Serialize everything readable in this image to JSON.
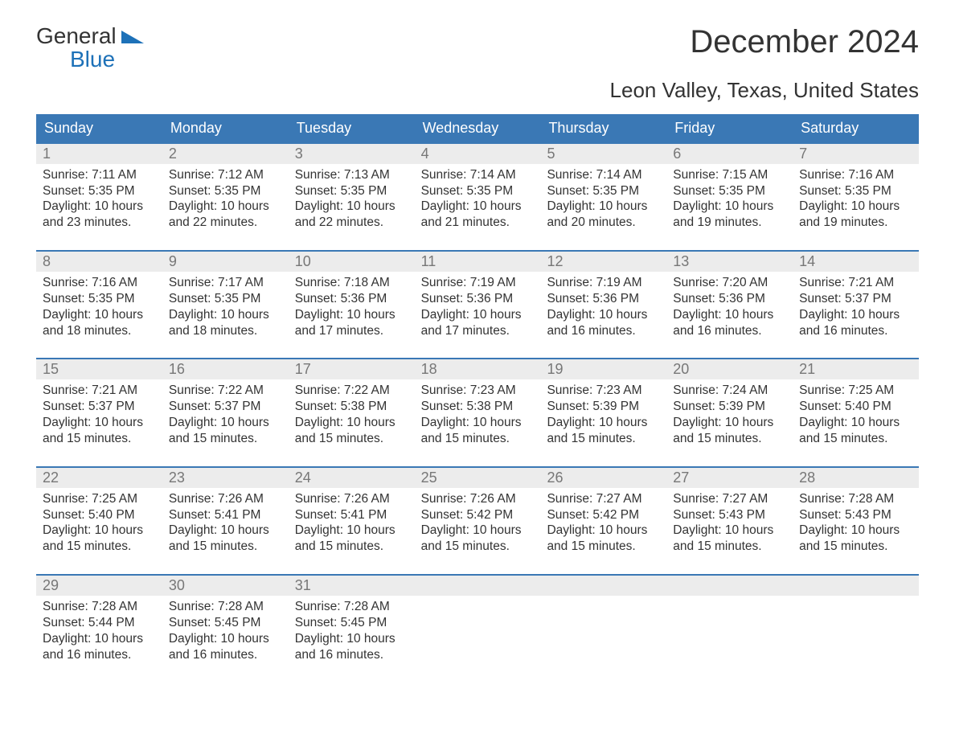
{
  "brand": {
    "top": "General",
    "bottom": "Blue"
  },
  "title": "December 2024",
  "location": "Leon Valley, Texas, United States",
  "colors": {
    "header_bg": "#3a78b5",
    "header_text": "#ffffff",
    "daynum_bg": "#ececec",
    "daynum_text": "#777777",
    "body_text": "#333333",
    "brand_blue": "#1d71b8",
    "page_bg": "#ffffff",
    "week_border": "#3a78b5"
  },
  "typography": {
    "title_fontsize": 40,
    "location_fontsize": 26,
    "dayheader_fontsize": 18,
    "daynum_fontsize": 18,
    "body_fontsize": 15.5,
    "logo_fontsize": 28
  },
  "day_headers": [
    "Sunday",
    "Monday",
    "Tuesday",
    "Wednesday",
    "Thursday",
    "Friday",
    "Saturday"
  ],
  "weeks": [
    [
      {
        "n": "1",
        "sunrise": "7:11 AM",
        "sunset": "5:35 PM",
        "daylight": "10 hours and 23 minutes."
      },
      {
        "n": "2",
        "sunrise": "7:12 AM",
        "sunset": "5:35 PM",
        "daylight": "10 hours and 22 minutes."
      },
      {
        "n": "3",
        "sunrise": "7:13 AM",
        "sunset": "5:35 PM",
        "daylight": "10 hours and 22 minutes."
      },
      {
        "n": "4",
        "sunrise": "7:14 AM",
        "sunset": "5:35 PM",
        "daylight": "10 hours and 21 minutes."
      },
      {
        "n": "5",
        "sunrise": "7:14 AM",
        "sunset": "5:35 PM",
        "daylight": "10 hours and 20 minutes."
      },
      {
        "n": "6",
        "sunrise": "7:15 AM",
        "sunset": "5:35 PM",
        "daylight": "10 hours and 19 minutes."
      },
      {
        "n": "7",
        "sunrise": "7:16 AM",
        "sunset": "5:35 PM",
        "daylight": "10 hours and 19 minutes."
      }
    ],
    [
      {
        "n": "8",
        "sunrise": "7:16 AM",
        "sunset": "5:35 PM",
        "daylight": "10 hours and 18 minutes."
      },
      {
        "n": "9",
        "sunrise": "7:17 AM",
        "sunset": "5:35 PM",
        "daylight": "10 hours and 18 minutes."
      },
      {
        "n": "10",
        "sunrise": "7:18 AM",
        "sunset": "5:36 PM",
        "daylight": "10 hours and 17 minutes."
      },
      {
        "n": "11",
        "sunrise": "7:19 AM",
        "sunset": "5:36 PM",
        "daylight": "10 hours and 17 minutes."
      },
      {
        "n": "12",
        "sunrise": "7:19 AM",
        "sunset": "5:36 PM",
        "daylight": "10 hours and 16 minutes."
      },
      {
        "n": "13",
        "sunrise": "7:20 AM",
        "sunset": "5:36 PM",
        "daylight": "10 hours and 16 minutes."
      },
      {
        "n": "14",
        "sunrise": "7:21 AM",
        "sunset": "5:37 PM",
        "daylight": "10 hours and 16 minutes."
      }
    ],
    [
      {
        "n": "15",
        "sunrise": "7:21 AM",
        "sunset": "5:37 PM",
        "daylight": "10 hours and 15 minutes."
      },
      {
        "n": "16",
        "sunrise": "7:22 AM",
        "sunset": "5:37 PM",
        "daylight": "10 hours and 15 minutes."
      },
      {
        "n": "17",
        "sunrise": "7:22 AM",
        "sunset": "5:38 PM",
        "daylight": "10 hours and 15 minutes."
      },
      {
        "n": "18",
        "sunrise": "7:23 AM",
        "sunset": "5:38 PM",
        "daylight": "10 hours and 15 minutes."
      },
      {
        "n": "19",
        "sunrise": "7:23 AM",
        "sunset": "5:39 PM",
        "daylight": "10 hours and 15 minutes."
      },
      {
        "n": "20",
        "sunrise": "7:24 AM",
        "sunset": "5:39 PM",
        "daylight": "10 hours and 15 minutes."
      },
      {
        "n": "21",
        "sunrise": "7:25 AM",
        "sunset": "5:40 PM",
        "daylight": "10 hours and 15 minutes."
      }
    ],
    [
      {
        "n": "22",
        "sunrise": "7:25 AM",
        "sunset": "5:40 PM",
        "daylight": "10 hours and 15 minutes."
      },
      {
        "n": "23",
        "sunrise": "7:26 AM",
        "sunset": "5:41 PM",
        "daylight": "10 hours and 15 minutes."
      },
      {
        "n": "24",
        "sunrise": "7:26 AM",
        "sunset": "5:41 PM",
        "daylight": "10 hours and 15 minutes."
      },
      {
        "n": "25",
        "sunrise": "7:26 AM",
        "sunset": "5:42 PM",
        "daylight": "10 hours and 15 minutes."
      },
      {
        "n": "26",
        "sunrise": "7:27 AM",
        "sunset": "5:42 PM",
        "daylight": "10 hours and 15 minutes."
      },
      {
        "n": "27",
        "sunrise": "7:27 AM",
        "sunset": "5:43 PM",
        "daylight": "10 hours and 15 minutes."
      },
      {
        "n": "28",
        "sunrise": "7:28 AM",
        "sunset": "5:43 PM",
        "daylight": "10 hours and 15 minutes."
      }
    ],
    [
      {
        "n": "29",
        "sunrise": "7:28 AM",
        "sunset": "5:44 PM",
        "daylight": "10 hours and 16 minutes."
      },
      {
        "n": "30",
        "sunrise": "7:28 AM",
        "sunset": "5:45 PM",
        "daylight": "10 hours and 16 minutes."
      },
      {
        "n": "31",
        "sunrise": "7:28 AM",
        "sunset": "5:45 PM",
        "daylight": "10 hours and 16 minutes."
      },
      {
        "empty": true
      },
      {
        "empty": true
      },
      {
        "empty": true
      },
      {
        "empty": true
      }
    ]
  ],
  "labels": {
    "sunrise": "Sunrise: ",
    "sunset": "Sunset: ",
    "daylight": "Daylight: "
  }
}
